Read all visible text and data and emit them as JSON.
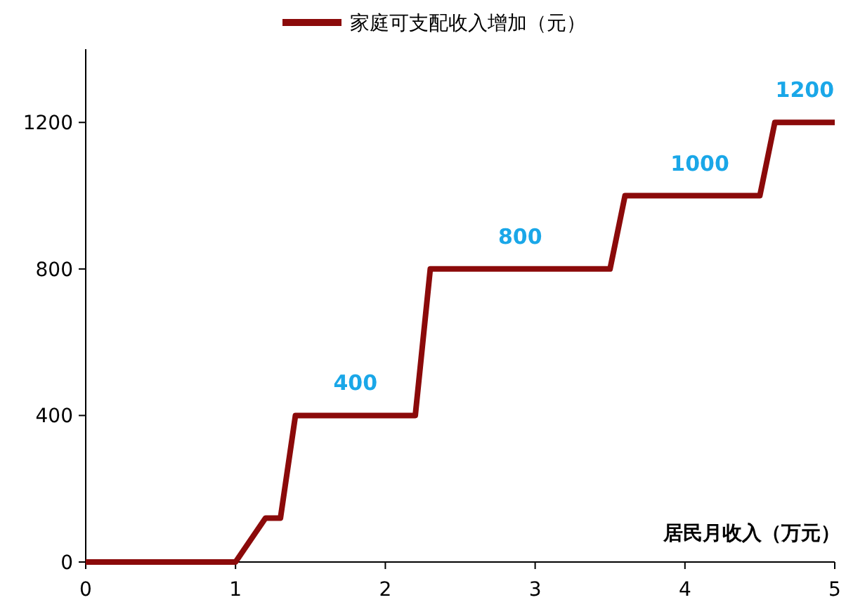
{
  "chart_data": {
    "type": "line",
    "xlabel": "居民月收入（万元）",
    "x": [
      0,
      1,
      1.2,
      1.3,
      1.4,
      2.2,
      2.3,
      3.5,
      3.6,
      4.5,
      4.6,
      5
    ],
    "series": [
      {
        "name": "家庭可支配收入增加（元）",
        "color": "#8b0a0a",
        "values": [
          0,
          0,
          120,
          120,
          400,
          400,
          800,
          800,
          1000,
          1000,
          1200,
          1200
        ]
      }
    ],
    "xlim": [
      0,
      5
    ],
    "xticks": [
      0,
      1,
      2,
      3,
      4,
      5
    ],
    "ylim": [
      0,
      1400
    ],
    "yticks": [
      0,
      400,
      800,
      1200
    ],
    "grid": false,
    "legend": "top",
    "line_style": "solid",
    "marker": "none",
    "annotations": [
      {
        "text": "400",
        "x": 1.8,
        "y": 400
      },
      {
        "text": "800",
        "x": 2.9,
        "y": 800
      },
      {
        "text": "1000",
        "x": 4.1,
        "y": 1000
      },
      {
        "text": "1200",
        "x": 4.8,
        "y": 1200
      }
    ]
  }
}
